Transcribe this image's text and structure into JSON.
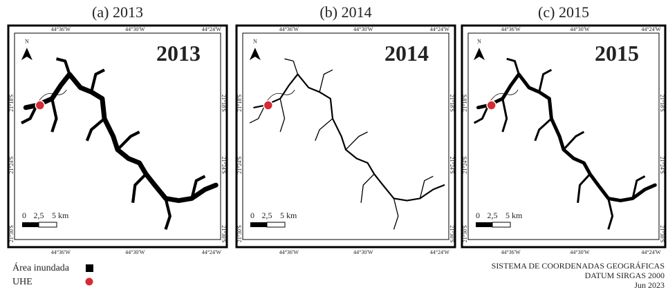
{
  "panels": [
    {
      "caption": "(a) 2013",
      "year": "2013",
      "north": "N",
      "top_labels": [
        "44°36'W",
        "44°30'W",
        "44°24'W"
      ],
      "bottom_labels": [
        "44°36'W",
        "44°30'W",
        "44°24'W"
      ],
      "left_labels": [
        "21°18'S",
        "21°24'S",
        "21°30'S"
      ],
      "right_labels": [
        "21°18'S",
        "21°24'S",
        "21°30'S"
      ],
      "scale_labels": [
        "0",
        "2,5",
        "5 km"
      ]
    },
    {
      "caption": "(b) 2014",
      "year": "2014",
      "north": "N",
      "top_labels": [
        "44°36'W",
        "44°30'W",
        "44°24'W"
      ],
      "bottom_labels": [
        "44°36'W",
        "44°30'W",
        "44°24'W"
      ],
      "left_labels": [
        "21°18'S",
        "21°24'S",
        "21°30'S"
      ],
      "right_labels": [
        "21°18'S",
        "21°24'S",
        "21°30'S"
      ],
      "scale_labels": [
        "0",
        "2,5",
        "5 km"
      ]
    },
    {
      "caption": "(c) 2015",
      "year": "2015",
      "north": "N",
      "top_labels": [
        "44°36'W",
        "44°30'W",
        "44°24'W"
      ],
      "bottom_labels": [
        "44°36'W",
        "44°30'W",
        "44°24'W"
      ],
      "left_labels": [
        "21°18'S",
        "21°24'S",
        "21°30'S"
      ],
      "right_labels": [
        "21°18'S",
        "21°24'S",
        "21°30'S"
      ],
      "scale_labels": [
        "0",
        "2,5",
        "5 km"
      ]
    }
  ],
  "legend": [
    {
      "label": "Área inundada"
    },
    {
      "label": "UHE"
    }
  ],
  "footer": [
    "SISTEMA DE COORDENADAS GEOGRÁFICAS",
    "DATUM SIRGAS 2000",
    "Jun 2023"
  ]
}
